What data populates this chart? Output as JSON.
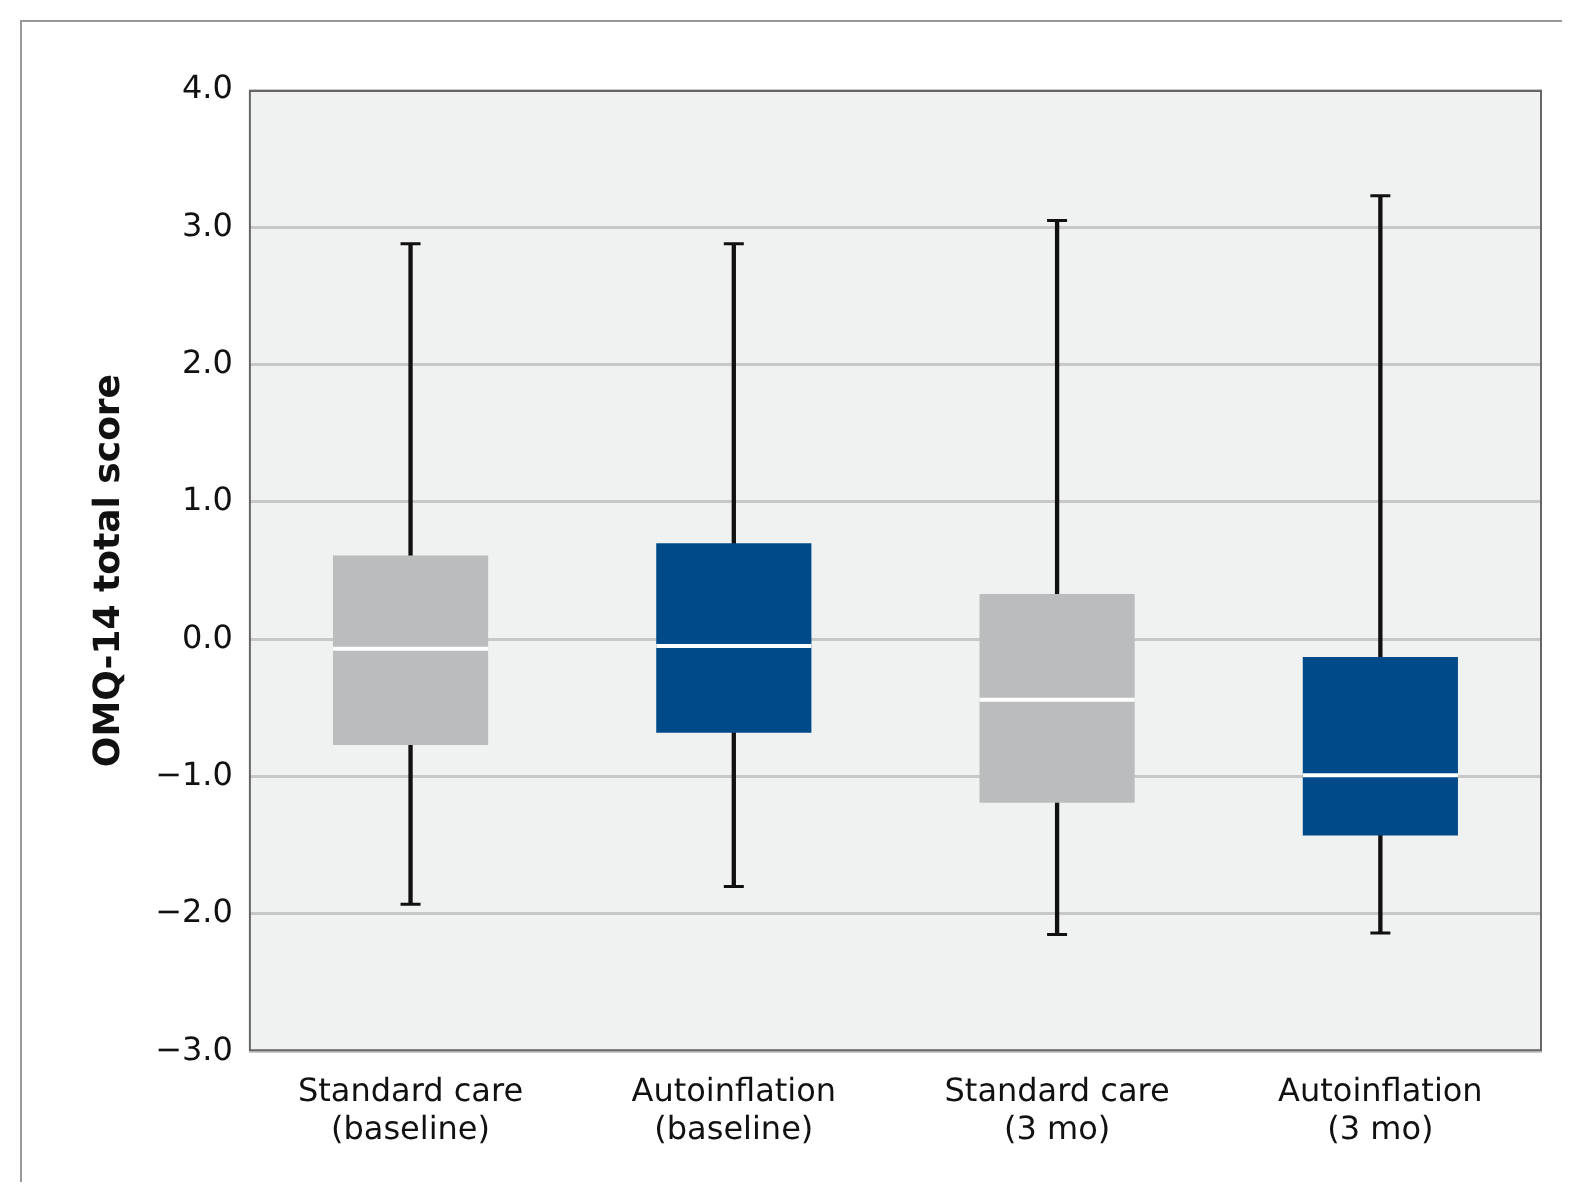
{
  "chart_data": {
    "type": "box",
    "ylabel": "OMQ-14 total score",
    "categories": [
      "Standard care (baseline)",
      "Autoinflation (baseline)",
      "Standard care (3 mo)",
      "Autoinflation (3 mo)"
    ],
    "colors": [
      "#bbbcbe",
      "#004a8a",
      "#bbbcbe",
      "#004a8a"
    ],
    "boxes": [
      {
        "low": -1.93,
        "q1": -0.77,
        "median": -0.07,
        "q3": 0.61,
        "high": 2.88
      },
      {
        "low": -1.8,
        "q1": -0.68,
        "median": -0.05,
        "q3": 0.7,
        "high": 2.88
      },
      {
        "low": -2.15,
        "q1": -1.19,
        "median": -0.44,
        "q3": 0.33,
        "high": 3.05
      },
      {
        "low": -2.14,
        "q1": -1.43,
        "median": -0.99,
        "q3": -0.13,
        "high": 3.23
      }
    ],
    "ylim": [
      -3,
      4
    ],
    "yticks": [
      {
        "value": -3,
        "label": "−3.0"
      },
      {
        "value": -2,
        "label": "−2.0"
      },
      {
        "value": -1,
        "label": "−1.0"
      },
      {
        "value": 0,
        "label": "0.0"
      },
      {
        "value": 1,
        "label": "1.0"
      },
      {
        "value": 2,
        "label": "2.0"
      },
      {
        "value": 3,
        "label": "3.0"
      },
      {
        "value": 4,
        "label": "4.0"
      }
    ],
    "grid": "y",
    "legend": false
  }
}
